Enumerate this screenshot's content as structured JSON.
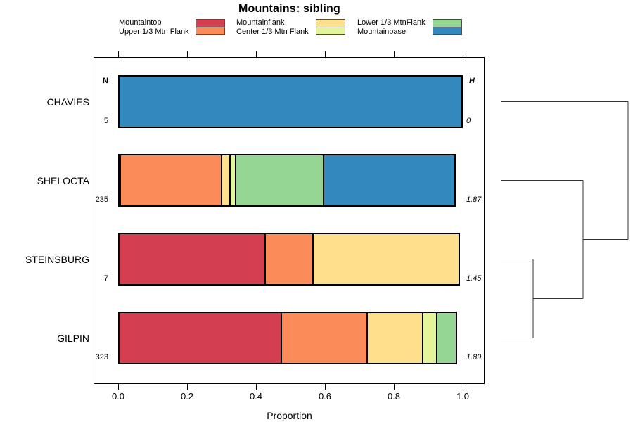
{
  "chart_data": {
    "type": "bar",
    "variant": "horizontal-stacked-proportion",
    "title": "Mountains: sibling",
    "xlabel": "Proportion",
    "x_ticks": [
      "0.0",
      "0.2",
      "0.4",
      "0.6",
      "0.8",
      "1.0"
    ],
    "xlim": [
      0,
      1
    ],
    "grid": false,
    "n_header": "N",
    "h_header": "H",
    "categories": [
      {
        "name": "Mountaintop",
        "color": "#D33F50"
      },
      {
        "name": "Upper 1/3 Mtn Flank",
        "color": "#FB8C59"
      },
      {
        "name": "Mountainflank",
        "color": "#FEDF8B"
      },
      {
        "name": "Center 1/3 Mtn Flank",
        "color": "#E4F49B"
      },
      {
        "name": "Lower 1/3 MtnFlank",
        "color": "#96D693"
      },
      {
        "name": "Mountainbase",
        "color": "#3388BE"
      }
    ],
    "rows": [
      {
        "label": "CHAVIES",
        "n": "5",
        "h": "0",
        "segments": [
          {
            "category": "Mountainbase",
            "proportion": 1.0
          }
        ]
      },
      {
        "label": "SHELOCTA",
        "n": "235",
        "h": "1.87",
        "segments": [
          {
            "category": "Mountaintop",
            "proportion": 0.009
          },
          {
            "category": "Upper 1/3 Mtn Flank",
            "proportion": 0.297
          },
          {
            "category": "Mountainflank",
            "proportion": 0.029
          },
          {
            "category": "Center 1/3 Mtn Flank",
            "proportion": 0.02
          },
          {
            "category": "Lower 1/3 MtnFlank",
            "proportion": 0.26
          },
          {
            "category": "Mountainbase",
            "proportion": 0.385
          }
        ]
      },
      {
        "label": "STEINSBURG",
        "n": "7",
        "h": "1.45",
        "segments": [
          {
            "category": "Mountaintop",
            "proportion": 0.4286
          },
          {
            "category": "Upper 1/3 Mtn Flank",
            "proportion": 0.1428
          },
          {
            "category": "Mountainflank",
            "proportion": 0.4286
          }
        ]
      },
      {
        "label": "GILPIN",
        "n": "323",
        "h": "1.89",
        "segments": [
          {
            "category": "Mountaintop",
            "proportion": 0.475
          },
          {
            "category": "Upper 1/3 Mtn Flank",
            "proportion": 0.253
          },
          {
            "category": "Mountainflank",
            "proportion": 0.165
          },
          {
            "category": "Center 1/3 Mtn Flank",
            "proportion": 0.046
          },
          {
            "category": "Lower 1/3 MtnFlank",
            "proportion": 0.061
          }
        ]
      }
    ],
    "legend": {
      "position": "top",
      "columns": [
        [
          "Mountaintop",
          "Upper 1/3 Mtn Flank"
        ],
        [
          "Mountainflank",
          "Center 1/3 Mtn Flank"
        ],
        [
          "Lower 1/3 MtnFlank",
          "Mountainbase"
        ]
      ]
    },
    "dendrogram": {
      "side": "right",
      "leaf_order": [
        "CHAVIES",
        "SHELOCTA",
        "STEINSBURG",
        "GILPIN"
      ],
      "merges": [
        {
          "members": [
            "STEINSBURG",
            "GILPIN"
          ],
          "rank": 1
        },
        {
          "members": [
            "SHELOCTA",
            "STEINSBURG+GILPIN"
          ],
          "rank": 2
        },
        {
          "members": [
            "CHAVIES",
            "SHELOCTA+STEINSBURG+GILPIN"
          ],
          "rank": 3
        }
      ]
    }
  }
}
